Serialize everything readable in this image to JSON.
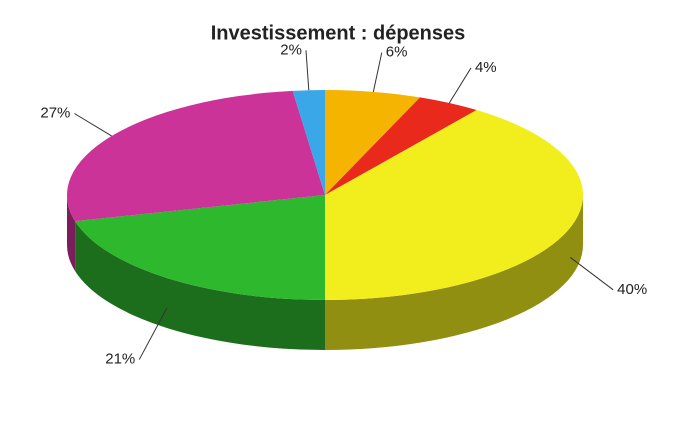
{
  "chart_data": {
    "type": "pie3d",
    "title": "Investissement : dépenses",
    "values": [
      6,
      4,
      40,
      21,
      27,
      2
    ],
    "value_labels": [
      "6%",
      "4%",
      "40%",
      "21%",
      "27%",
      "2%"
    ],
    "colors": [
      "#f5b400",
      "#e8291c",
      "#f2ee1e",
      "#2eb82e",
      "#cc3399",
      "#3aa8e8"
    ]
  }
}
